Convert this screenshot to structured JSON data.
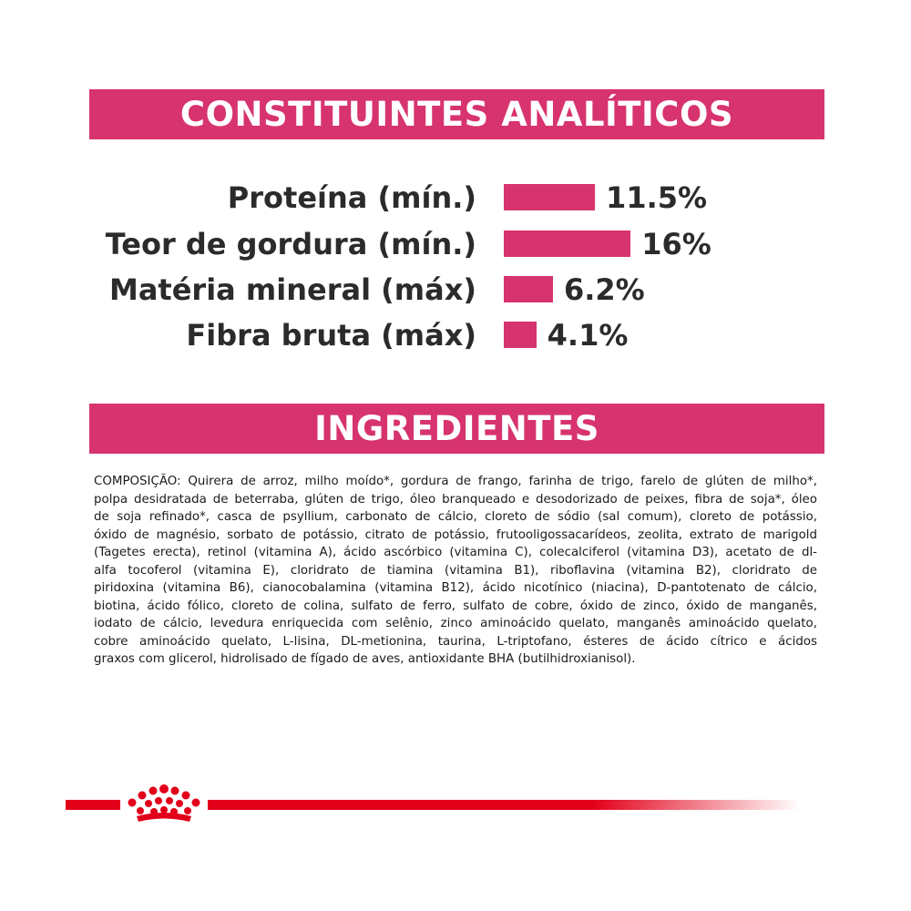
{
  "sections": {
    "analytics_title": "CONSTITUINTES ANALÍTICOS",
    "ingredients_title": "INGREDIENTES"
  },
  "analytics": [
    {
      "label": "Proteína (mín.)",
      "value_text": "11.5%",
      "value": 11.5
    },
    {
      "label": "Teor de gordura (mín.)",
      "value_text": "16%",
      "value": 16
    },
    {
      "label": "Matéria mineral (máx)",
      "value_text": "6.2%",
      "value": 6.2
    },
    {
      "label": "Fibra bruta (máx)",
      "value_text": "4.1%",
      "value": 4.1
    }
  ],
  "ingredients_lines": [
    "COMPOSIÇÃO: Quirera de arroz, milho moído*, gordura de frango, farinha de trigo, farelo de glúten de milho*,",
    "polpa desidratada de beterraba, glúten de trigo, óleo branqueado e desodorizado de peixes, fibra de soja*, óleo",
    "de soja refinado*, casca de psyllium, carbonato de cálcio, cloreto de sódio (sal comum), cloreto de potássio,",
    "óxido de magnésio, sorbato de potássio, citrato de potássio, frutooligossacarídeos, zeolita, extrato de marigold",
    "(Tagetes erecta), retinol (vitamina A), ácido ascórbico (vitamina C), colecalciferol (vitamina D3), acetato de dl-",
    "alfa tocoferol (vitamina E), cloridrato de tiamina (vitamina B1), riboflavina (vitamina B2), cloridrato de",
    "piridoxina (vitamina B6), cianocobalamina (vitamina B12), ácido nicotínico (niacina), D-pantotenato de cálcio,",
    "biotina, ácido fólico, cloreto de colina, sulfato de ferro, sulfato de cobre, óxido de zinco, óxido de manganês,",
    "iodato de cálcio, levedura enriquecida com selênio, zinco aminoácido quelato, manganês aminoácido quelato,",
    "cobre aminoácido quelato, L-lisina, DL-metionina, taurina, L-triptofano, ésteres de ácido cítrico e ácidos",
    "graxos com glicerol, hidrolisado de fígado de aves, antioxidante BHA (butilhidroxianisol)."
  ],
  "colors": {
    "accent": "#d7336f",
    "brand_red": "#e2001a"
  }
}
